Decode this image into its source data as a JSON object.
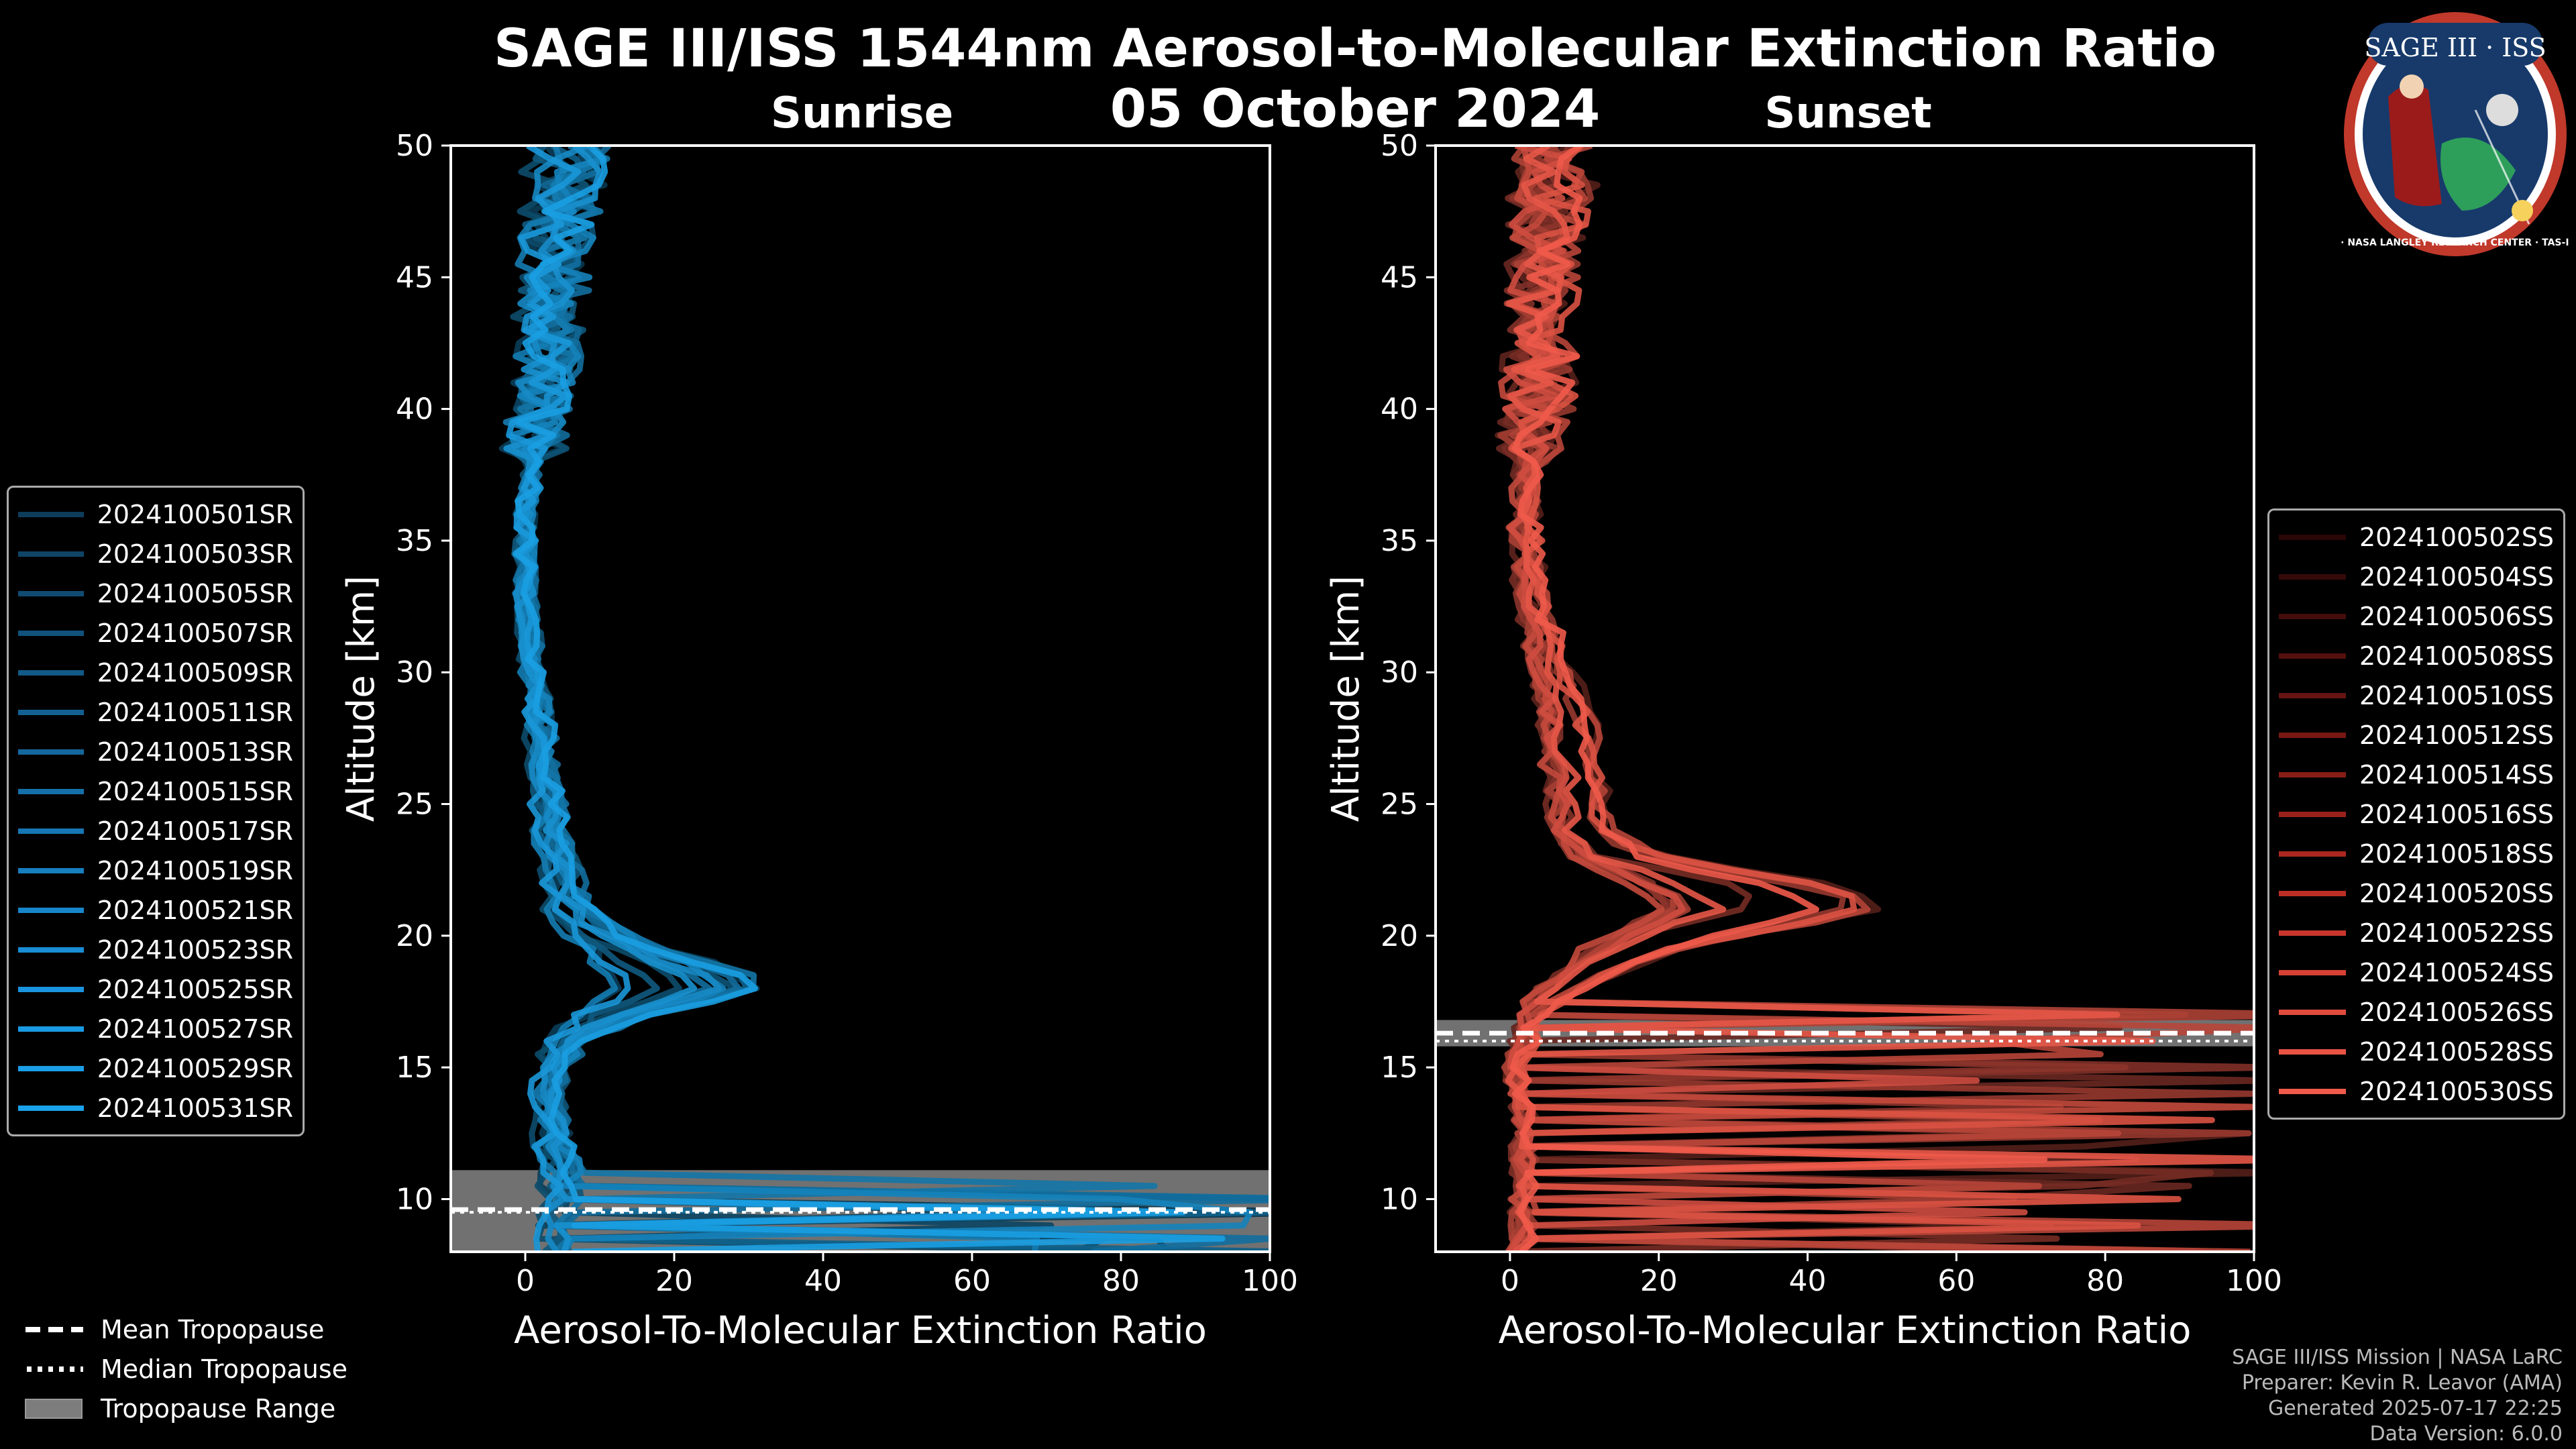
{
  "header": {
    "title": "SAGE III/ISS 1544nm Aerosol-to-Molecular Extinction Ratio",
    "date": "05 October 2024"
  },
  "logo": {
    "top_text": "SAGE III · ISS",
    "ring_text": "BALL · NASA LANGLEY RESEARCH CENTER · TAS-I · ESA"
  },
  "chart_data": [
    {
      "type": "line",
      "title": "Sunrise",
      "xlabel": "Aerosol-To-Molecular Extinction Ratio",
      "ylabel": "Altitude [km]",
      "xlim": [
        -10,
        100
      ],
      "ylim": [
        8,
        50
      ],
      "xticks": [
        0,
        20,
        40,
        60,
        80,
        100
      ],
      "yticks": [
        10,
        15,
        20,
        25,
        30,
        35,
        40,
        45,
        50
      ],
      "color": "#1a9ee2",
      "tropopause": {
        "mean": 9.6,
        "median": 9.5,
        "range": [
          8,
          11.1
        ]
      },
      "profile_shape": {
        "peak_altitude": 18.3,
        "peak_value": 26,
        "low_stratosphere": [
          [
            9,
            4
          ],
          [
            10,
            5
          ],
          [
            11,
            5
          ],
          [
            12,
            4
          ],
          [
            14,
            3
          ],
          [
            16,
            5
          ],
          [
            17,
            10
          ],
          [
            18,
            16
          ],
          [
            19,
            12
          ],
          [
            20,
            9
          ],
          [
            21,
            6
          ],
          [
            22,
            5
          ],
          [
            23,
            4
          ],
          [
            25,
            3
          ],
          [
            28,
            2
          ],
          [
            30,
            1
          ],
          [
            33,
            0
          ],
          [
            36,
            0
          ],
          [
            38,
            1
          ],
          [
            40,
            2
          ],
          [
            43,
            3
          ],
          [
            46,
            4
          ],
          [
            48,
            5
          ],
          [
            50,
            6
          ]
        ]
      },
      "series": [
        {
          "name": "2024100501SR"
        },
        {
          "name": "2024100503SR"
        },
        {
          "name": "2024100505SR"
        },
        {
          "name": "2024100507SR"
        },
        {
          "name": "2024100509SR"
        },
        {
          "name": "2024100511SR"
        },
        {
          "name": "2024100513SR"
        },
        {
          "name": "2024100515SR"
        },
        {
          "name": "2024100517SR"
        },
        {
          "name": "2024100519SR"
        },
        {
          "name": "2024100521SR"
        },
        {
          "name": "2024100523SR"
        },
        {
          "name": "2024100525SR"
        },
        {
          "name": "2024100527SR"
        },
        {
          "name": "2024100529SR"
        },
        {
          "name": "2024100531SR"
        }
      ],
      "swatch_colors": [
        "#0e3d5c",
        "#0f4467",
        "#104b72",
        "#11527d",
        "#125a88",
        "#136193",
        "#14689e",
        "#1570a9",
        "#1677b4",
        "#177ebf",
        "#1886ca",
        "#198dd5",
        "#1a94de",
        "#1a9ae2",
        "#1a9ee6",
        "#1aa3ea"
      ]
    },
    {
      "type": "line",
      "title": "Sunset",
      "xlabel": "Aerosol-To-Molecular Extinction Ratio",
      "ylabel": "Altitude [km]",
      "xlim": [
        -10,
        100
      ],
      "ylim": [
        8,
        50
      ],
      "xticks": [
        0,
        20,
        40,
        60,
        80,
        100
      ],
      "yticks": [
        10,
        15,
        20,
        25,
        30,
        35,
        40,
        45,
        50
      ],
      "color": "#f05a4a",
      "tropopause": {
        "mean": 16.3,
        "median": 16.0,
        "range": [
          15.8,
          16.8
        ]
      },
      "profile_shape": {
        "peak_altitude": 21.5,
        "peak_value": 35,
        "low_stratosphere": [
          [
            9,
            2
          ],
          [
            11,
            2
          ],
          [
            13,
            2
          ],
          [
            15,
            1
          ],
          [
            16,
            2
          ],
          [
            17,
            3
          ],
          [
            18,
            7
          ],
          [
            19,
            13
          ],
          [
            20,
            20
          ],
          [
            21,
            24
          ],
          [
            22,
            18
          ],
          [
            23,
            12
          ],
          [
            24,
            10
          ],
          [
            26,
            9
          ],
          [
            28,
            8
          ],
          [
            30,
            6
          ],
          [
            33,
            3
          ],
          [
            36,
            2
          ],
          [
            38,
            3
          ],
          [
            40,
            4
          ],
          [
            43,
            4
          ],
          [
            46,
            5
          ],
          [
            48,
            6
          ],
          [
            50,
            6
          ]
        ]
      },
      "series": [
        {
          "name": "2024100502SS"
        },
        {
          "name": "2024100504SS"
        },
        {
          "name": "2024100506SS"
        },
        {
          "name": "2024100508SS"
        },
        {
          "name": "2024100510SS"
        },
        {
          "name": "2024100512SS"
        },
        {
          "name": "2024100514SS"
        },
        {
          "name": "2024100516SS"
        },
        {
          "name": "2024100518SS"
        },
        {
          "name": "2024100520SS"
        },
        {
          "name": "2024100522SS"
        },
        {
          "name": "2024100524SS"
        },
        {
          "name": "2024100526SS"
        },
        {
          "name": "2024100528SS"
        },
        {
          "name": "2024100530SS"
        }
      ],
      "swatch_colors": [
        "#2a0706",
        "#360a09",
        "#440d0c",
        "#54100e",
        "#651411",
        "#771814",
        "#881c17",
        "#9a211b",
        "#ab271f",
        "#bb2e25",
        "#c9372c",
        "#d54134",
        "#e04b3d",
        "#e95444",
        "#f05a4a"
      ]
    }
  ],
  "tropopause_legend": {
    "mean": "Mean Tropopause",
    "median": "Median Tropopause",
    "range": "Tropopause Range"
  },
  "footer": {
    "line1": "SAGE III/ISS Mission | NASA LaRC",
    "line2": "Preparer: Kevin R. Leavor (AMA)",
    "line3": "Generated 2025-07-17 22:25",
    "line4": "Data Version: 6.0.0"
  }
}
